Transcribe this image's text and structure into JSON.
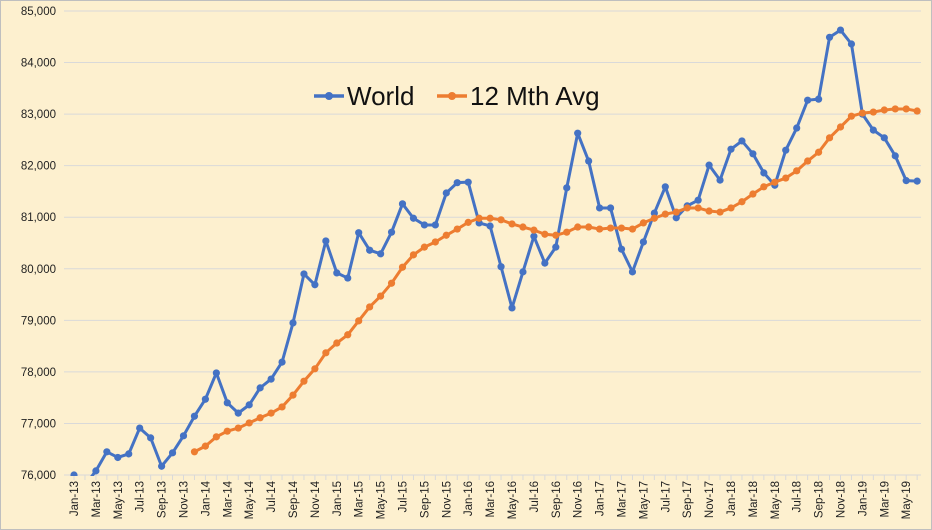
{
  "chart_data": {
    "type": "line",
    "title": "",
    "xlabel": "",
    "ylabel": "",
    "ylim": [
      76000,
      85000
    ],
    "yticks": [
      "76,000",
      "77,000",
      "78,000",
      "79,000",
      "80,000",
      "81,000",
      "82,000",
      "83,000",
      "84,000",
      "85,000"
    ],
    "ytick_values": [
      76000,
      77000,
      78000,
      79000,
      80000,
      81000,
      82000,
      83000,
      84000,
      85000
    ],
    "grid": true,
    "legend_position": "top-center",
    "x": [
      "Jan-13",
      "Feb-13",
      "Mar-13",
      "Apr-13",
      "May-13",
      "Jun-13",
      "Jul-13",
      "Aug-13",
      "Sep-13",
      "Oct-13",
      "Nov-13",
      "Dec-13",
      "Jan-14",
      "Feb-14",
      "Mar-14",
      "Apr-14",
      "May-14",
      "Jun-14",
      "Jul-14",
      "Aug-14",
      "Sep-14",
      "Oct-14",
      "Nov-14",
      "Dec-14",
      "Jan-15",
      "Feb-15",
      "Mar-15",
      "Apr-15",
      "May-15",
      "Jun-15",
      "Jul-15",
      "Aug-15",
      "Sep-15",
      "Oct-15",
      "Nov-15",
      "Dec-15",
      "Jan-16",
      "Feb-16",
      "Mar-16",
      "Apr-16",
      "May-16",
      "Jun-16",
      "Jul-16",
      "Aug-16",
      "Sep-16",
      "Oct-16",
      "Nov-16",
      "Dec-16",
      "Jan-17",
      "Feb-17",
      "Mar-17",
      "Apr-17",
      "May-17",
      "Jun-17",
      "Jul-17",
      "Aug-17",
      "Sep-17",
      "Oct-17",
      "Nov-17",
      "Dec-17",
      "Jan-18",
      "Feb-18",
      "Mar-18",
      "Apr-18",
      "May-18",
      "Jun-18",
      "Jul-18",
      "Aug-18",
      "Sep-18",
      "Oct-18",
      "Nov-18",
      "Dec-18",
      "Jan-19",
      "Feb-19",
      "Mar-19",
      "Apr-19",
      "May-19",
      "Jun-19"
    ],
    "xtick_labels": [
      "Jan-13",
      "Mar-13",
      "May-13",
      "Jul-13",
      "Sep-13",
      "Nov-13",
      "Jan-14",
      "Mar-14",
      "May-14",
      "Jul-14",
      "Sep-14",
      "Nov-14",
      "Jan-15",
      "Mar-15",
      "May-15",
      "Jul-15",
      "Sep-15",
      "Nov-15",
      "Jan-16",
      "Mar-16",
      "May-16",
      "Jul-16",
      "Sep-16",
      "Nov-16",
      "Jan-17",
      "Mar-17",
      "May-17",
      "Jul-17",
      "Sep-17",
      "Nov-17",
      "Jan-18",
      "Mar-18",
      "May-18",
      "Jul-18",
      "Sep-18",
      "Nov-18",
      "Jan-19",
      "Mar-19",
      "May-19"
    ],
    "series": [
      {
        "name": "World",
        "color": "#4472c4",
        "values": [
          76000,
          75800,
          76080,
          76450,
          76340,
          76410,
          76910,
          76720,
          76170,
          76430,
          76760,
          77140,
          77470,
          77980,
          77400,
          77200,
          77360,
          77690,
          77860,
          78190,
          78950,
          79900,
          79690,
          80540,
          79920,
          79820,
          80700,
          80360,
          80290,
          80710,
          81260,
          80980,
          80850,
          80850,
          81470,
          81670,
          81680,
          80890,
          80830,
          80040,
          79240,
          79940,
          80630,
          80110,
          80420,
          81570,
          82630,
          82090,
          81180,
          81180,
          80380,
          79940,
          80520,
          81080,
          81590,
          80990,
          81220,
          81330,
          82010,
          81720,
          82320,
          82480,
          82230,
          81860,
          81620,
          82300,
          82730,
          83270,
          83290,
          84490,
          84630,
          84360,
          83000,
          82690,
          82540,
          82190,
          81710,
          81700
        ]
      },
      {
        "name": "12 Mth Avg",
        "color": "#ed7d31",
        "values": [
          null,
          null,
          null,
          null,
          null,
          null,
          null,
          null,
          null,
          null,
          null,
          76450,
          76560,
          76740,
          76850,
          76910,
          77010,
          77110,
          77200,
          77320,
          77550,
          77820,
          78060,
          78370,
          78560,
          78720,
          78990,
          79260,
          79470,
          79720,
          80030,
          80270,
          80420,
          80520,
          80650,
          80770,
          80900,
          80980,
          80980,
          80950,
          80870,
          80810,
          80750,
          80670,
          80650,
          80710,
          80810,
          80810,
          80770,
          80790,
          80790,
          80770,
          80890,
          80980,
          81060,
          81100,
          81180,
          81180,
          81120,
          81100,
          81180,
          81300,
          81450,
          81590,
          81680,
          81760,
          81900,
          82090,
          82260,
          82540,
          82750,
          82960,
          83020,
          83040,
          83080,
          83100,
          83100,
          83060
        ]
      }
    ]
  }
}
